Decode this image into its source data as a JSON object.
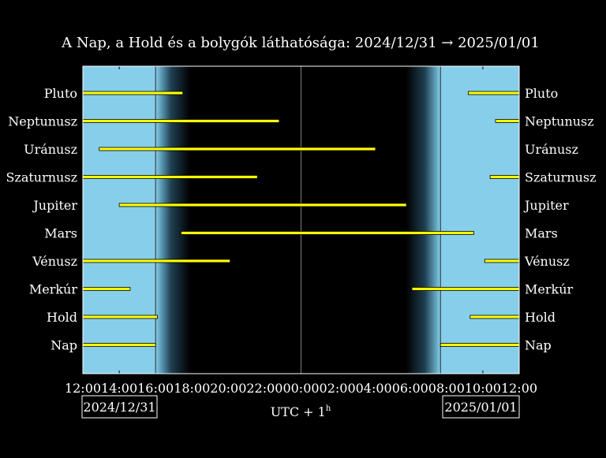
{
  "chart_data": {
    "type": "gantt",
    "title": "A Nap, a Hold és a bolygók láthatósága: 2024/12/31 → 2025/01/01",
    "xlabel": "UTC + 1",
    "xlabel_sup": "h",
    "x_range_hours": [
      0,
      24
    ],
    "x_ticks": [
      "12:00",
      "14:00",
      "16:00",
      "18:00",
      "20:00",
      "22:00",
      "00:00",
      "02:00",
      "04:00",
      "06:00",
      "08:00",
      "10:00",
      "12:00"
    ],
    "date_left": "2024/12/31",
    "date_right": "2025/01/01",
    "sunset_hour": 4.0,
    "sunrise_hour": 19.67,
    "midnight_hour": 12.0,
    "twilight_hours": 1.9,
    "bodies": [
      {
        "name": "Pluto",
        "intervals": [
          [
            0,
            5.5
          ],
          [
            21.2,
            24
          ]
        ]
      },
      {
        "name": "Neptunusz",
        "intervals": [
          [
            0,
            10.8
          ],
          [
            22.7,
            24
          ]
        ]
      },
      {
        "name": "Uránusz",
        "intervals": [
          [
            0.9,
            16.1
          ]
        ]
      },
      {
        "name": "Szaturnusz",
        "intervals": [
          [
            0,
            9.6
          ],
          [
            22.4,
            24
          ]
        ]
      },
      {
        "name": "Jupiter",
        "intervals": [
          [
            2.0,
            17.8
          ]
        ]
      },
      {
        "name": "Mars",
        "intervals": [
          [
            5.4,
            21.5
          ]
        ]
      },
      {
        "name": "Vénusz",
        "intervals": [
          [
            0,
            8.1
          ],
          [
            22.1,
            24
          ]
        ]
      },
      {
        "name": "Merkúr",
        "intervals": [
          [
            0,
            2.6
          ],
          [
            18.1,
            24
          ]
        ]
      },
      {
        "name": "Hold",
        "intervals": [
          [
            0,
            4.1
          ],
          [
            21.3,
            24
          ]
        ]
      },
      {
        "name": "Nap",
        "intervals": [
          [
            0,
            4.0
          ],
          [
            19.67,
            24
          ]
        ]
      }
    ],
    "colors": {
      "day_sky": "#87ceeb",
      "night": "#000000",
      "bar_fill": "#ffff00",
      "bar_edge": "#000000",
      "text": "#ffffff",
      "grid_line": "#808080"
    }
  }
}
